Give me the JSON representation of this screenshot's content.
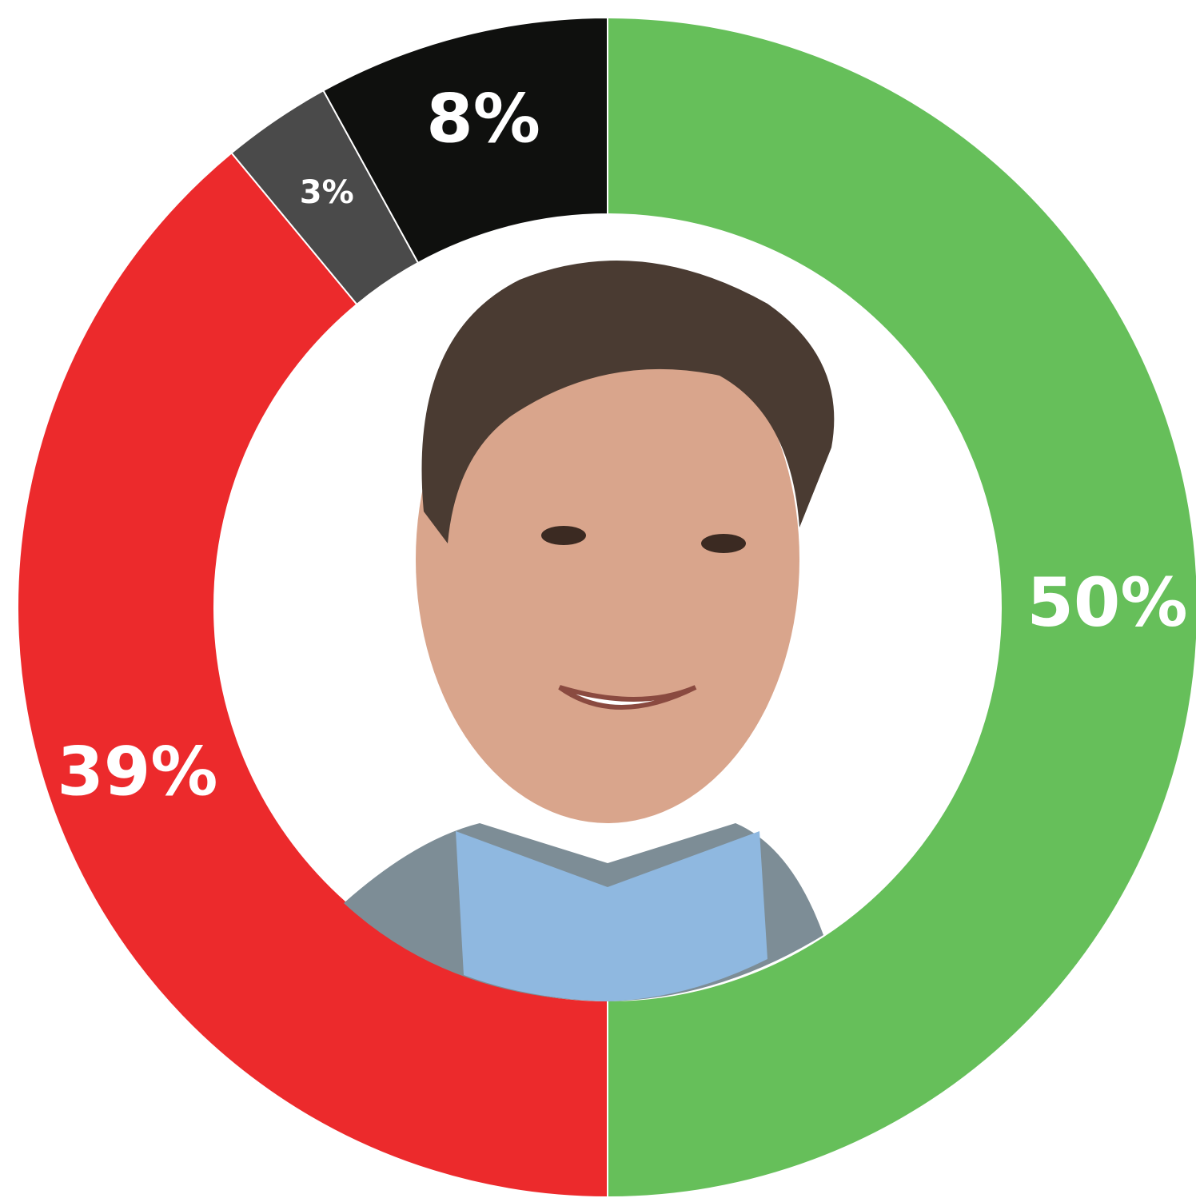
{
  "chart_data": {
    "type": "pie",
    "donut": true,
    "values": [
      50,
      39,
      3,
      8
    ],
    "value_labels": [
      "50%",
      "39%",
      "3%",
      "8%"
    ],
    "colors": [
      "#66bf5a",
      "#ec2a2c",
      "#4a4a4a",
      "#0f100e"
    ]
  }
}
